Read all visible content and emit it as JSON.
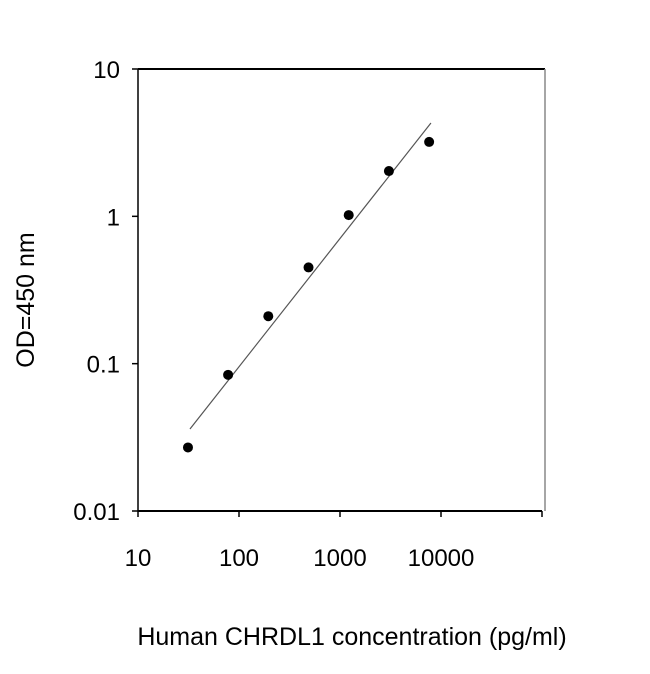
{
  "chart_data": {
    "type": "scatter",
    "title": "",
    "xlabel": "Human CHRDL1 concentration (pg/ml)",
    "ylabel": "OD=450 nm",
    "xscale": "log",
    "yscale": "log",
    "xlim": [
      10,
      100000
    ],
    "ylim": [
      0.01,
      10
    ],
    "xticks": [
      10,
      100,
      1000,
      10000,
      100000
    ],
    "xtick_labels": [
      "10",
      "100",
      "1000",
      "10000",
      ""
    ],
    "yticks": [
      0.01,
      0.1,
      1,
      10
    ],
    "ytick_labels": [
      "0.01",
      "0.1",
      "1",
      "10"
    ],
    "grid": false,
    "points": [
      {
        "x": 31.25,
        "y": 0.027
      },
      {
        "x": 78,
        "y": 0.084
      },
      {
        "x": 195,
        "y": 0.21
      },
      {
        "x": 488,
        "y": 0.45
      },
      {
        "x": 1220,
        "y": 1.02
      },
      {
        "x": 3050,
        "y": 2.03
      },
      {
        "x": 7630,
        "y": 3.2
      }
    ],
    "fit_line": [
      {
        "x": 32.7,
        "y": 0.036
      },
      {
        "x": 7950,
        "y": 4.3
      }
    ],
    "colors": {
      "points": "#000000",
      "line": "#555555",
      "axes": "#000000",
      "frame": "#888888"
    }
  }
}
